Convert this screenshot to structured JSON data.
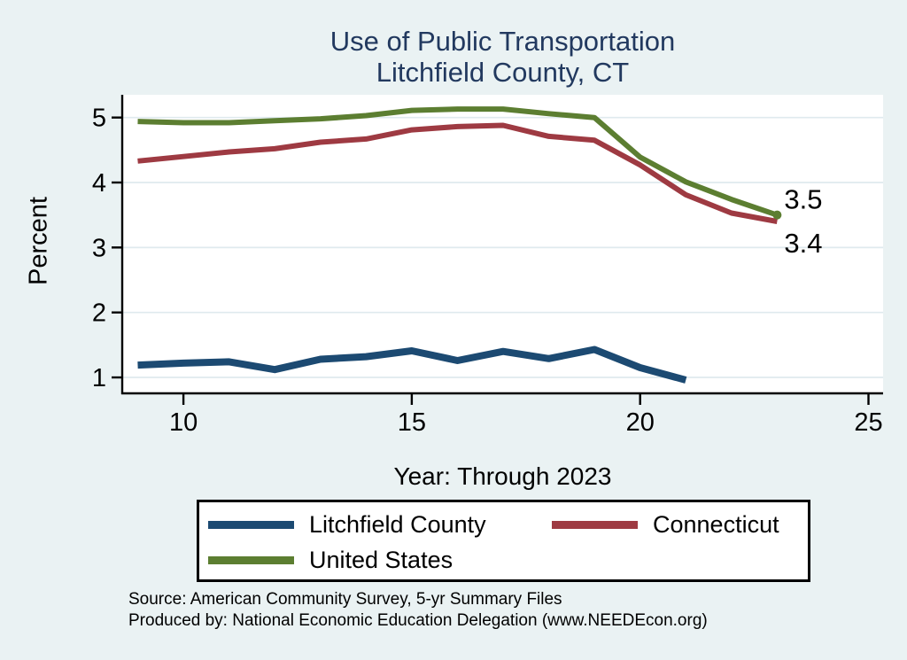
{
  "page": {
    "background": "#eaf2f3",
    "plot_background": "#ffffff",
    "gridline_color": "#dfeaee"
  },
  "title": {
    "line1": "Use of Public Transportation",
    "line2": "Litchfield County, CT",
    "color": "#22395f"
  },
  "chart_data": {
    "type": "line",
    "title": "Use of Public Transportation Litchfield County, CT",
    "xlabel": "Year: Through 2023",
    "ylabel": "Percent",
    "grid": true,
    "legend_position": "bottom",
    "xlim": [
      8.66,
      25.32
    ],
    "ylim": [
      0.755,
      5.35
    ],
    "x_ticks": [
      10,
      15,
      20,
      25
    ],
    "y_ticks": [
      1,
      2,
      3,
      4,
      5
    ],
    "series": [
      {
        "name": "Litchfield County",
        "color": "#1c4a72",
        "stroke_width": 8,
        "x": [
          9,
          10,
          11,
          12,
          13,
          14,
          15,
          16,
          17,
          18,
          19,
          20,
          21
        ],
        "values": [
          1.19,
          1.22,
          1.24,
          1.12,
          1.28,
          1.32,
          1.41,
          1.26,
          1.4,
          1.29,
          1.43,
          1.15,
          0.96
        ]
      },
      {
        "name": "Connecticut",
        "color": "#9e3a42",
        "stroke_width": 6,
        "x": [
          9,
          10,
          11,
          12,
          13,
          14,
          15,
          16,
          17,
          18,
          19,
          20,
          21,
          22,
          23
        ],
        "values": [
          4.33,
          4.4,
          4.47,
          4.52,
          4.62,
          4.67,
          4.81,
          4.86,
          4.88,
          4.71,
          4.65,
          4.27,
          3.81,
          3.53,
          3.4
        ]
      },
      {
        "name": "United States",
        "color": "#5c7e31",
        "stroke_width": 6,
        "end_marker": true,
        "x": [
          9,
          10,
          11,
          12,
          13,
          14,
          15,
          16,
          17,
          18,
          19,
          20,
          21,
          22,
          23
        ],
        "values": [
          4.94,
          4.92,
          4.92,
          4.95,
          4.98,
          5.03,
          5.11,
          5.13,
          5.13,
          5.06,
          5.0,
          4.39,
          4.01,
          3.74,
          3.5
        ]
      }
    ],
    "end_labels": [
      {
        "series": "United States",
        "text": "3.5",
        "value": 3.5
      },
      {
        "series": "Connecticut",
        "text": "3.4",
        "value": 3.4
      }
    ]
  },
  "legend": {
    "items": [
      {
        "label": "Litchfield County",
        "color": "#1c4a72"
      },
      {
        "label": "Connecticut",
        "color": "#9e3a42"
      },
      {
        "label": "United States",
        "color": "#5c7e31"
      }
    ]
  },
  "source": {
    "line1": "Source: American Community Survey, 5-yr Summary Files",
    "line2": "Produced by: National Economic Education Delegation (www.NEEDEcon.org)"
  }
}
